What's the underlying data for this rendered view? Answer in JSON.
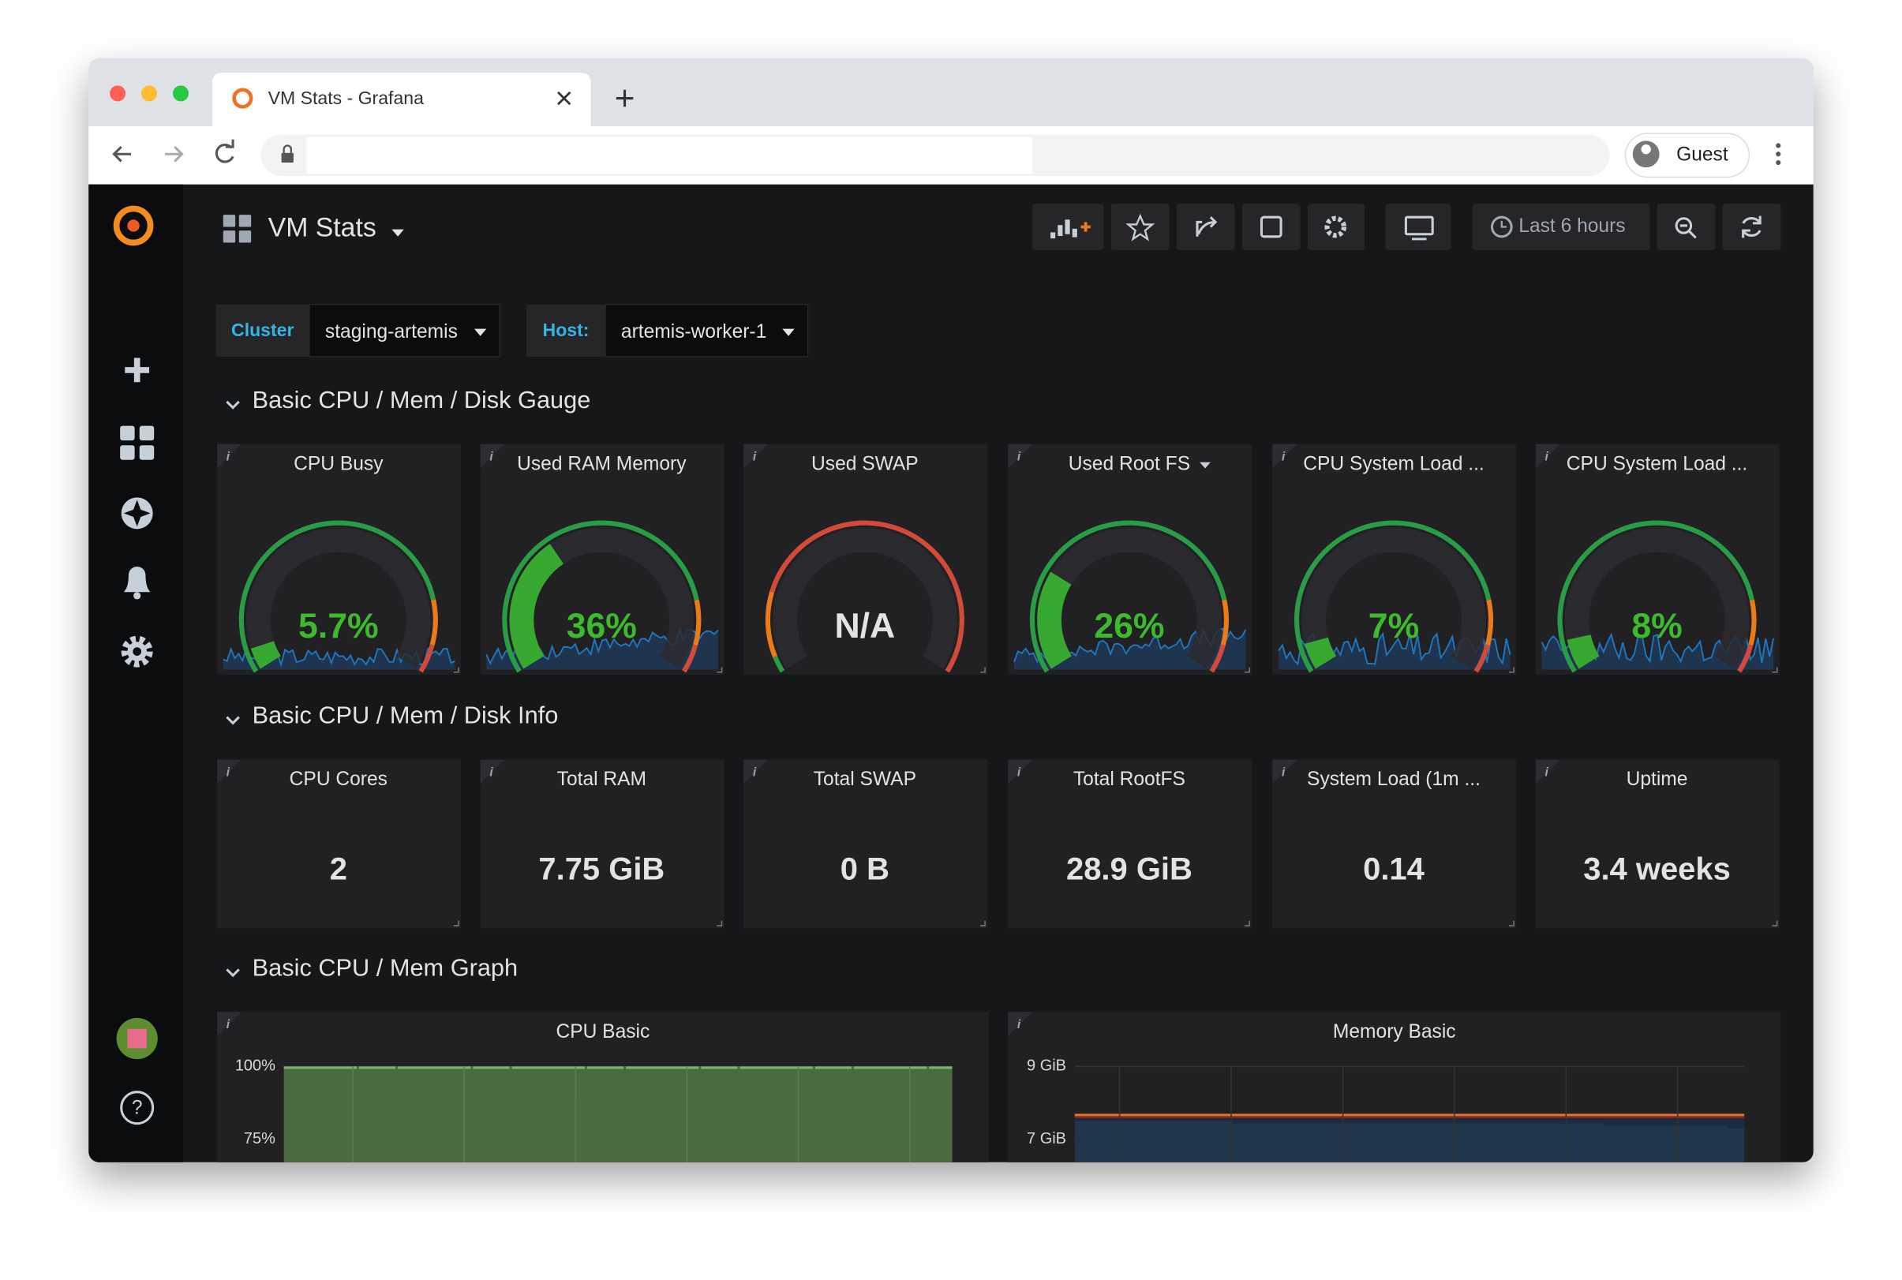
{
  "browser": {
    "tab_title": "VM Stats - Grafana",
    "profile": "Guest"
  },
  "dashboard": {
    "title": "VM Stats",
    "time_range": "Last 6 hours",
    "variables": [
      {
        "label": "Cluster",
        "value": "staging-artemis"
      },
      {
        "label": "Host:",
        "value": "artemis-worker-1"
      }
    ]
  },
  "rows": [
    {
      "title": "Basic CPU / Mem / Disk Gauge",
      "panels": [
        {
          "title": "CPU Busy",
          "value": 5.7,
          "value_label": "5.7%"
        },
        {
          "title": "Used RAM Memory",
          "value": 36,
          "value_label": "36%"
        },
        {
          "title": "Used SWAP",
          "value": null,
          "value_label": "N/A"
        },
        {
          "title": "Used Root FS",
          "value": 26,
          "value_label": "26%"
        },
        {
          "title": "CPU System Load ...",
          "value": 7,
          "value_label": "7%"
        },
        {
          "title": "CPU System Load ...",
          "value": 8,
          "value_label": "8%"
        }
      ]
    },
    {
      "title": "Basic CPU / Mem / Disk Info",
      "panels": [
        {
          "title": "CPU Cores",
          "value": 2
        },
        {
          "title": "Total RAM",
          "value": "7.75 GiB"
        },
        {
          "title": "Total SWAP",
          "value": "0 B"
        },
        {
          "title": "Total RootFS",
          "value": "28.9 GiB"
        },
        {
          "title": "System Load (1m ...",
          "value": 0.14
        },
        {
          "title": "Uptime",
          "value": "3.4 weeks"
        }
      ]
    },
    {
      "title": "Basic CPU / Mem Graph",
      "panels": [
        {
          "title": "CPU Basic",
          "yticks": [
            "100%",
            "75%"
          ]
        },
        {
          "title": "Memory Basic",
          "yticks": [
            "9 GiB",
            "7 GiB"
          ]
        }
      ]
    }
  ]
}
